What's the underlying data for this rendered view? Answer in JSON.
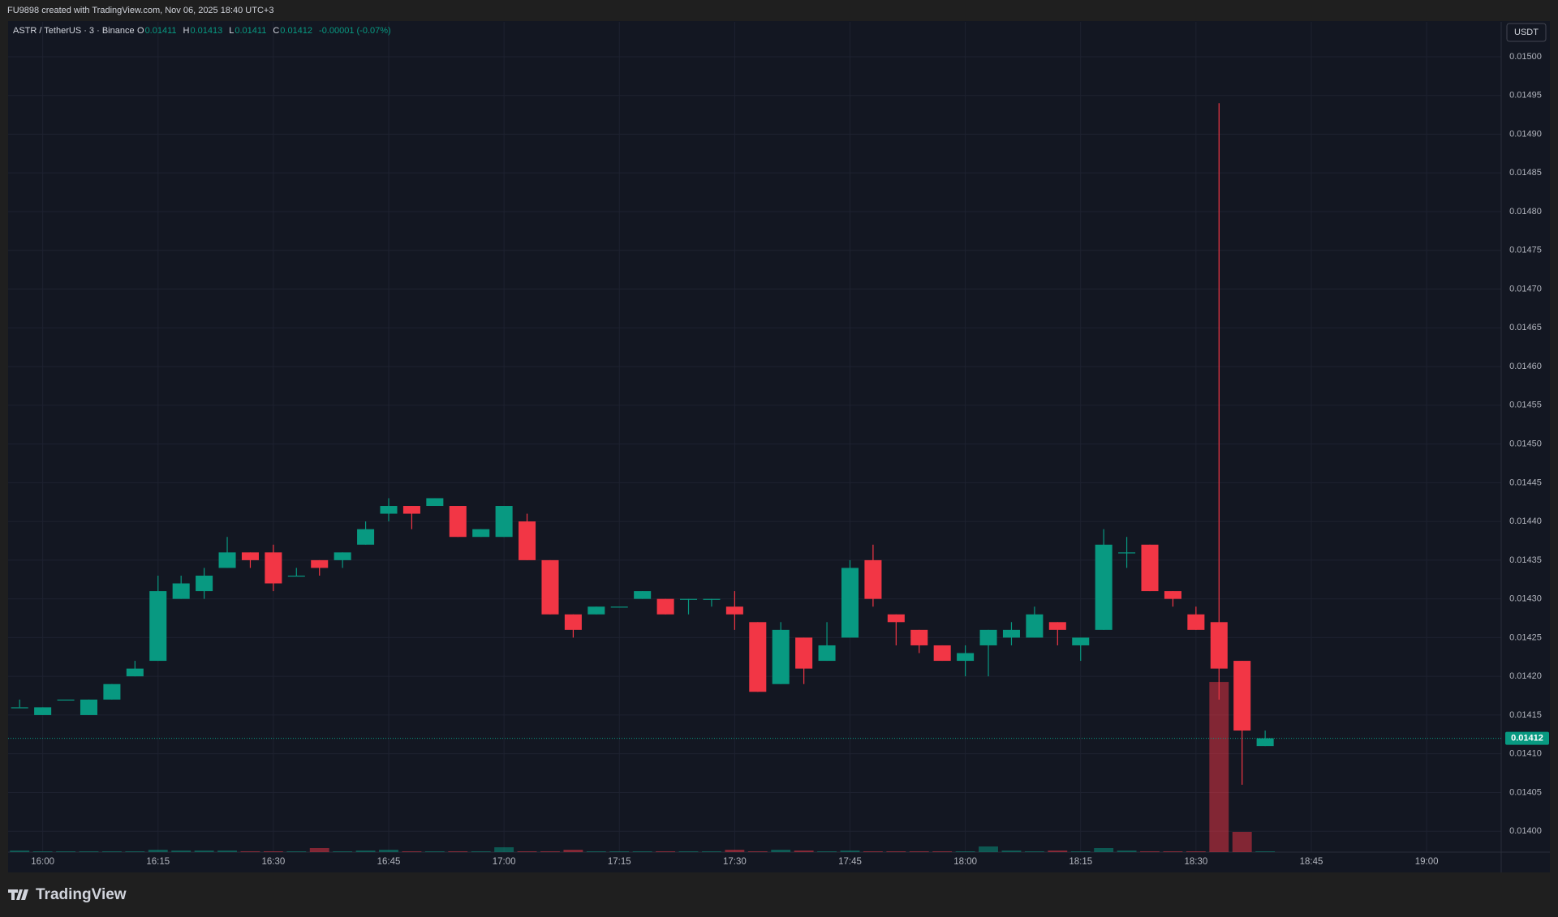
{
  "header": "FU9898 created with TradingView.com, Nov 06, 2025 18:40 UTC+3",
  "brand": "TradingView",
  "chart_data": {
    "type": "candlestick",
    "symbol": "ASTR / TetherUS · 3 · Binance",
    "legend": [
      {
        "key": "O",
        "value": "0.01411"
      },
      {
        "key": "H",
        "value": "0.01413"
      },
      {
        "key": "L",
        "value": "0.01411"
      },
      {
        "key": "C",
        "value": "0.01412"
      }
    ],
    "change": "-0.00001 (-0.07%)",
    "currency": "USDT",
    "up_color": "#089981",
    "down_color": "#f23645",
    "grid": true,
    "x": [
      957,
      960,
      963,
      966,
      969,
      972,
      975,
      978,
      981,
      984,
      987,
      990,
      993,
      996,
      999,
      1002,
      1005,
      1008,
      1011,
      1014,
      1017,
      1020,
      1023,
      1026,
      1029,
      1032,
      1035,
      1038,
      1041,
      1044,
      1047,
      1050,
      1053,
      1056,
      1059,
      1062,
      1065,
      1068,
      1071,
      1074,
      1077,
      1080,
      1083,
      1086,
      1089,
      1092,
      1095,
      1098,
      1101,
      1104,
      1107,
      1110,
      1113,
      1116,
      1119
    ],
    "open": [
      0.01416,
      0.01415,
      0.01417,
      0.01415,
      0.01417,
      0.0142,
      0.01422,
      0.0143,
      0.01431,
      0.01434,
      0.01436,
      0.01436,
      0.01433,
      0.01435,
      0.01435,
      0.01437,
      0.01441,
      0.01442,
      0.01442,
      0.01442,
      0.01438,
      0.01438,
      0.0144,
      0.01435,
      0.01428,
      0.01428,
      0.01429,
      0.0143,
      0.0143,
      0.0143,
      0.0143,
      0.01429,
      0.01427,
      0.01419,
      0.01425,
      0.01422,
      0.01425,
      0.01435,
      0.01428,
      0.01426,
      0.01424,
      0.01422,
      0.01424,
      0.01425,
      0.01425,
      0.01427,
      0.01424,
      0.01426,
      0.01436,
      0.01437,
      0.01431,
      0.01428,
      0.01427,
      0.01422,
      0.01411
    ],
    "high": [
      0.01417,
      0.01416,
      0.01417,
      0.01417,
      0.01419,
      0.01422,
      0.01433,
      0.01433,
      0.01434,
      0.01438,
      0.01436,
      0.01437,
      0.01434,
      0.01435,
      0.01436,
      0.0144,
      0.01443,
      0.01442,
      0.01443,
      0.01442,
      0.01439,
      0.01442,
      0.01441,
      0.01435,
      0.01428,
      0.01429,
      0.01429,
      0.01431,
      0.0143,
      0.0143,
      0.0143,
      0.01431,
      0.01427,
      0.01427,
      0.01425,
      0.01427,
      0.01435,
      0.01437,
      0.01428,
      0.01426,
      0.01424,
      0.01424,
      0.01426,
      0.01427,
      0.01429,
      0.01427,
      0.01425,
      0.01439,
      0.01438,
      0.01437,
      0.01431,
      0.01429,
      0.01494,
      0.01422,
      0.01413
    ],
    "low": [
      0.01416,
      0.01415,
      0.01417,
      0.01415,
      0.01417,
      0.0142,
      0.01422,
      0.0143,
      0.0143,
      0.01434,
      0.01434,
      0.01431,
      0.01433,
      0.01433,
      0.01434,
      0.01437,
      0.0144,
      0.01439,
      0.01442,
      0.01438,
      0.01438,
      0.01438,
      0.01435,
      0.01428,
      0.01425,
      0.01428,
      0.01429,
      0.0143,
      0.01428,
      0.01428,
      0.01429,
      0.01426,
      0.01418,
      0.01419,
      0.01419,
      0.01422,
      0.01425,
      0.01429,
      0.01424,
      0.01423,
      0.01422,
      0.0142,
      0.0142,
      0.01424,
      0.01425,
      0.01424,
      0.01422,
      0.01426,
      0.01434,
      0.01431,
      0.01429,
      0.01426,
      0.01417,
      0.01406,
      0.01411
    ],
    "close": [
      0.01416,
      0.01416,
      0.01417,
      0.01417,
      0.01419,
      0.01421,
      0.01431,
      0.01432,
      0.01433,
      0.01436,
      0.01435,
      0.01432,
      0.01433,
      0.01434,
      0.01436,
      0.01439,
      0.01442,
      0.01441,
      0.01443,
      0.01438,
      0.01439,
      0.01442,
      0.01435,
      0.01428,
      0.01426,
      0.01429,
      0.01429,
      0.01431,
      0.01428,
      0.0143,
      0.0143,
      0.01428,
      0.01418,
      0.01426,
      0.01421,
      0.01424,
      0.01434,
      0.0143,
      0.01427,
      0.01424,
      0.01422,
      0.01423,
      0.01426,
      0.01426,
      0.01428,
      0.01426,
      0.01425,
      0.01437,
      0.01436,
      0.01431,
      0.0143,
      0.01426,
      0.01421,
      0.01413,
      0.01412
    ],
    "volume": [
      2,
      1,
      1,
      1,
      1,
      1,
      3,
      2,
      2,
      2,
      1,
      1,
      1,
      5,
      1,
      2,
      3,
      1,
      1,
      1,
      1,
      6,
      1,
      1,
      3,
      1,
      1,
      1,
      1,
      1,
      1,
      3,
      1,
      3,
      2,
      1,
      2,
      1,
      1,
      1,
      1,
      1,
      7,
      2,
      1,
      2,
      1,
      5,
      2,
      1,
      1,
      1,
      210,
      25,
      1
    ],
    "xlim": [
      955.5,
      1149.7
    ],
    "ylim": [
      0.013973,
      0.015045
    ],
    "xticks": [
      {
        "value": 960,
        "label": "16:00"
      },
      {
        "value": 975,
        "label": "16:15"
      },
      {
        "value": 990,
        "label": "16:30"
      },
      {
        "value": 1005,
        "label": "16:45"
      },
      {
        "value": 1020,
        "label": "17:00"
      },
      {
        "value": 1035,
        "label": "17:15"
      },
      {
        "value": 1050,
        "label": "17:30"
      },
      {
        "value": 1065,
        "label": "17:45"
      },
      {
        "value": 1080,
        "label": "18:00"
      },
      {
        "value": 1095,
        "label": "18:15"
      },
      {
        "value": 1110,
        "label": "18:30"
      },
      {
        "value": 1125,
        "label": "18:45"
      },
      {
        "value": 1140,
        "label": "19:00"
      }
    ],
    "yticks": [
      {
        "value": 0.014,
        "label": "0.01400"
      },
      {
        "value": 0.01405,
        "label": "0.01405"
      },
      {
        "value": 0.0141,
        "label": "0.01410"
      },
      {
        "value": 0.01415,
        "label": "0.01415"
      },
      {
        "value": 0.0142,
        "label": "0.01420"
      },
      {
        "value": 0.01425,
        "label": "0.01425"
      },
      {
        "value": 0.0143,
        "label": "0.01430"
      },
      {
        "value": 0.01435,
        "label": "0.01435"
      },
      {
        "value": 0.0144,
        "label": "0.01440"
      },
      {
        "value": 0.01445,
        "label": "0.01445"
      },
      {
        "value": 0.0145,
        "label": "0.01450"
      },
      {
        "value": 0.01455,
        "label": "0.01455"
      },
      {
        "value": 0.0146,
        "label": "0.01460"
      },
      {
        "value": 0.01465,
        "label": "0.01465"
      },
      {
        "value": 0.0147,
        "label": "0.01470"
      },
      {
        "value": 0.01475,
        "label": "0.01475"
      },
      {
        "value": 0.0148,
        "label": "0.01480"
      },
      {
        "value": 0.01485,
        "label": "0.01485"
      },
      {
        "value": 0.0149,
        "label": "0.01490"
      },
      {
        "value": 0.01495,
        "label": "0.01495"
      },
      {
        "value": 0.015,
        "label": "0.01500"
      }
    ],
    "last_price": {
      "value": 0.01412,
      "label": "0.01412"
    }
  }
}
